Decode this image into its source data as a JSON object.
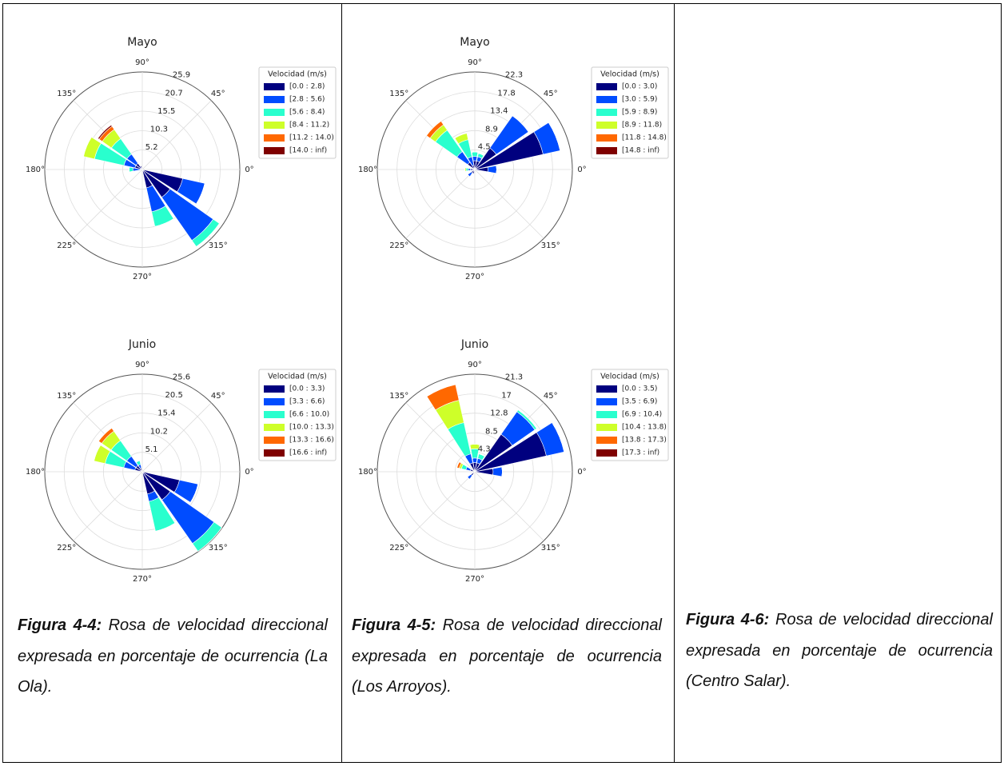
{
  "chart_data": [
    {
      "type": "windrose",
      "title": "Mayo",
      "legend_title": "Velocidad (m/s)",
      "x": [
        0,
        22.5,
        45,
        67.5,
        90,
        112.5,
        135,
        157.5,
        180,
        202.5,
        225,
        247.5,
        270,
        292.5,
        315,
        337.5
      ],
      "xticks": [
        {
          "value": 0,
          "label": "0°"
        },
        {
          "value": 45,
          "label": "45°"
        },
        {
          "value": 90,
          "label": "90°"
        },
        {
          "value": 135,
          "label": "135°"
        },
        {
          "value": 180,
          "label": "180°"
        },
        {
          "value": 225,
          "label": "225°"
        },
        {
          "value": 270,
          "label": "270°"
        },
        {
          "value": 315,
          "label": "315°"
        }
      ],
      "ylim": [
        0,
        25.9
      ],
      "yticks": [
        5.2,
        10.3,
        15.5,
        20.7,
        25.9
      ],
      "series": [
        {
          "name": "[0.0 : 2.8)",
          "color": "#00007f",
          "values": [
            0,
            0,
            0,
            0,
            0,
            1,
            2,
            2,
            0.5,
            0,
            0,
            0,
            0,
            5,
            9,
            11
          ]
        },
        {
          "name": "[2.8 : 5.6)",
          "color": "#004cff",
          "values": [
            0,
            0,
            0,
            0,
            0,
            0,
            3,
            3,
            2,
            0,
            0,
            0,
            0,
            6.5,
            14,
            6
          ]
        },
        {
          "name": "[5.6 : 8.4)",
          "color": "#29ffce",
          "values": [
            0,
            0,
            0,
            0,
            0,
            0,
            5,
            8,
            1,
            0,
            0,
            0,
            0,
            4,
            2,
            0
          ]
        },
        {
          "name": "[8.4 : 11.2)",
          "color": "#ceff29",
          "values": [
            0,
            0,
            0,
            0,
            0,
            0,
            3,
            3,
            0,
            0,
            0,
            0,
            0,
            0,
            0,
            0
          ]
        },
        {
          "name": "[11.2 : 14.0)",
          "color": "#ff6800",
          "values": [
            0,
            0,
            0,
            0,
            0,
            0,
            1,
            0,
            0,
            0,
            0,
            0,
            0,
            0,
            0,
            0
          ]
        },
        {
          "name": "[14.0 : inf)",
          "color": "#7f0000",
          "values": [
            0,
            0,
            0,
            0,
            0,
            0,
            0.4,
            0,
            0,
            0,
            0,
            0,
            0,
            0,
            0,
            0
          ]
        }
      ]
    },
    {
      "type": "windrose",
      "title": "Junio",
      "legend_title": "Velocidad (m/s)",
      "x": [
        0,
        22.5,
        45,
        67.5,
        90,
        112.5,
        135,
        157.5,
        180,
        202.5,
        225,
        247.5,
        270,
        292.5,
        315,
        337.5
      ],
      "xticks": [
        {
          "value": 0,
          "label": "0°"
        },
        {
          "value": 45,
          "label": "45°"
        },
        {
          "value": 90,
          "label": "90°"
        },
        {
          "value": 135,
          "label": "135°"
        },
        {
          "value": 180,
          "label": "180°"
        },
        {
          "value": 225,
          "label": "225°"
        },
        {
          "value": 270,
          "label": "270°"
        },
        {
          "value": 315,
          "label": "315°"
        }
      ],
      "ylim": [
        0,
        25.6
      ],
      "yticks": [
        5.1,
        10.2,
        15.4,
        20.5,
        25.6
      ],
      "series": [
        {
          "name": "[0.0 : 3.3)",
          "color": "#00007f",
          "values": [
            0,
            0,
            0,
            0,
            0,
            1,
            2,
            2,
            0,
            0,
            0,
            0,
            0,
            6,
            9,
            10
          ]
        },
        {
          "name": "[3.3 : 6.6)",
          "color": "#004cff",
          "values": [
            0,
            0,
            0,
            0,
            0,
            1,
            3,
            3,
            0,
            0,
            0,
            0,
            0,
            2,
            14,
            5
          ]
        },
        {
          "name": "[6.6 : 10.0)",
          "color": "#29ffce",
          "values": [
            0,
            0,
            0,
            0,
            0,
            1,
            5,
            5,
            0,
            0,
            0,
            0,
            0,
            8,
            2.5,
            0
          ]
        },
        {
          "name": "[10.0 : 13.3)",
          "color": "#ceff29",
          "values": [
            0,
            0,
            0,
            0,
            0,
            0,
            3,
            3,
            0,
            0,
            0,
            0,
            0,
            0,
            0,
            0
          ]
        },
        {
          "name": "[13.3 : 16.6)",
          "color": "#ff6800",
          "values": [
            0,
            0,
            0,
            0,
            0,
            0,
            1,
            0,
            0,
            0,
            0,
            0,
            0,
            0,
            0,
            0
          ]
        },
        {
          "name": "[16.6 : inf)",
          "color": "#7f0000",
          "values": [
            0,
            0,
            0,
            0,
            0,
            0,
            0,
            0,
            0,
            0,
            0,
            0,
            0,
            0,
            0,
            0
          ]
        }
      ]
    },
    {
      "type": "windrose",
      "title": "Mayo",
      "legend_title": "Velocidad (m/s)",
      "x": [
        0,
        22.5,
        45,
        67.5,
        90,
        112.5,
        135,
        157.5,
        180,
        202.5,
        225,
        247.5,
        270,
        292.5,
        315,
        337.5
      ],
      "xticks": [
        {
          "value": 0,
          "label": "0°"
        },
        {
          "value": 45,
          "label": "45°"
        },
        {
          "value": 90,
          "label": "90°"
        },
        {
          "value": 135,
          "label": "135°"
        },
        {
          "value": 180,
          "label": "180°"
        },
        {
          "value": 225,
          "label": "225°"
        },
        {
          "value": 270,
          "label": "270°"
        },
        {
          "value": 315,
          "label": "315°"
        }
      ],
      "ylim": [
        0,
        22.3
      ],
      "yticks": [
        4.5,
        8.9,
        13.4,
        17.8,
        22.3
      ],
      "series": [
        {
          "name": "[0.0 : 3.0)",
          "color": "#00007f",
          "values": [
            3,
            16,
            6,
            2,
            2,
            1,
            2,
            0,
            1,
            0,
            1,
            1,
            0,
            0,
            0,
            0
          ]
        },
        {
          "name": "[3.0 : 5.9)",
          "color": "#004cff",
          "values": [
            2,
            4,
            9,
            1,
            1,
            2,
            3,
            0,
            0.5,
            0,
            1,
            0,
            0,
            0,
            0,
            0
          ]
        },
        {
          "name": "[5.9 : 8.9)",
          "color": "#29ffce",
          "values": [
            0,
            0,
            0,
            0.8,
            1,
            4,
            6,
            0,
            0.5,
            0,
            0,
            0,
            0,
            0,
            0,
            0
          ]
        },
        {
          "name": "[8.9 : 11.8)",
          "color": "#ceff29",
          "values": [
            0,
            0,
            0,
            0,
            0,
            1.5,
            1.5,
            0,
            0.3,
            0,
            0,
            0,
            0,
            0,
            0,
            0
          ]
        },
        {
          "name": "[11.8 : 14.8)",
          "color": "#ff6800",
          "values": [
            0,
            0,
            0,
            0,
            0,
            0,
            1,
            0,
            0,
            0,
            0,
            0,
            0,
            0,
            0,
            0
          ]
        },
        {
          "name": "[14.8 : inf)",
          "color": "#7f0000",
          "values": [
            0,
            0,
            0,
            0,
            0,
            0,
            0,
            0,
            0,
            0,
            0,
            0,
            0,
            0,
            0,
            0
          ]
        }
      ]
    },
    {
      "type": "windrose",
      "title": "Junio",
      "legend_title": "Velocidad (m/s)",
      "x": [
        0,
        22.5,
        45,
        67.5,
        90,
        112.5,
        135,
        157.5,
        180,
        202.5,
        225,
        247.5,
        270,
        292.5,
        315,
        337.5
      ],
      "xticks": [
        {
          "value": 0,
          "label": "0°"
        },
        {
          "value": 45,
          "label": "45°"
        },
        {
          "value": 90,
          "label": "90°"
        },
        {
          "value": 135,
          "label": "135°"
        },
        {
          "value": 180,
          "label": "180°"
        },
        {
          "value": 225,
          "label": "225°"
        },
        {
          "value": 270,
          "label": "270°"
        },
        {
          "value": 315,
          "label": "315°"
        }
      ],
      "ylim": [
        0,
        21.3
      ],
      "yticks": [
        4.3,
        8.5,
        12.8,
        17.0,
        21.3
      ],
      "series": [
        {
          "name": "[0.0 : 3.5)",
          "color": "#00007f",
          "values": [
            4,
            16,
            10,
            2,
            2,
            2,
            0,
            1,
            0,
            0,
            1,
            0,
            0,
            0,
            0,
            0
          ]
        },
        {
          "name": "[3.5 : 6.9)",
          "color": "#004cff",
          "values": [
            2,
            4,
            6,
            1,
            1,
            2,
            0,
            1,
            0,
            0,
            1,
            0,
            0,
            0,
            0,
            0
          ]
        },
        {
          "name": "[6.9 : 10.4)",
          "color": "#29ffce",
          "values": [
            0,
            0,
            0.5,
            1,
            2,
            7,
            0,
            1,
            0,
            0,
            0,
            0,
            0,
            0,
            0,
            0
          ]
        },
        {
          "name": "[10.4 : 13.8)",
          "color": "#ceff29",
          "values": [
            0,
            0,
            0,
            0,
            1,
            5,
            0,
            0.5,
            0,
            0,
            0,
            0,
            0,
            0,
            0,
            0
          ]
        },
        {
          "name": "[13.8 : 17.3)",
          "color": "#ff6800",
          "values": [
            0,
            0,
            0,
            0,
            0,
            3.5,
            0,
            0.5,
            0,
            0,
            0,
            0,
            0,
            0,
            0,
            0
          ]
        },
        {
          "name": "[17.3 : inf)",
          "color": "#7f0000",
          "values": [
            0,
            0,
            0,
            0,
            0,
            0,
            0,
            0,
            0,
            0,
            0,
            0,
            0,
            0,
            0,
            0
          ]
        }
      ]
    }
  ],
  "table": {
    "captions": [
      {
        "label": "Figura 4-4:",
        "text": "Rosa de velocidad direccional expresada en porcentaje de ocurrencia (La Ola)."
      },
      {
        "label": "Figura 4-5:",
        "text": "Rosa de velocidad direccional expresada en porcentaje de ocurrencia (Los Arroyos)."
      },
      {
        "label": "Figura 4-6:",
        "text": "Rosa de velocidad direccional expresada en porcentaje de ocurrencia (Centro Salar)."
      }
    ]
  }
}
